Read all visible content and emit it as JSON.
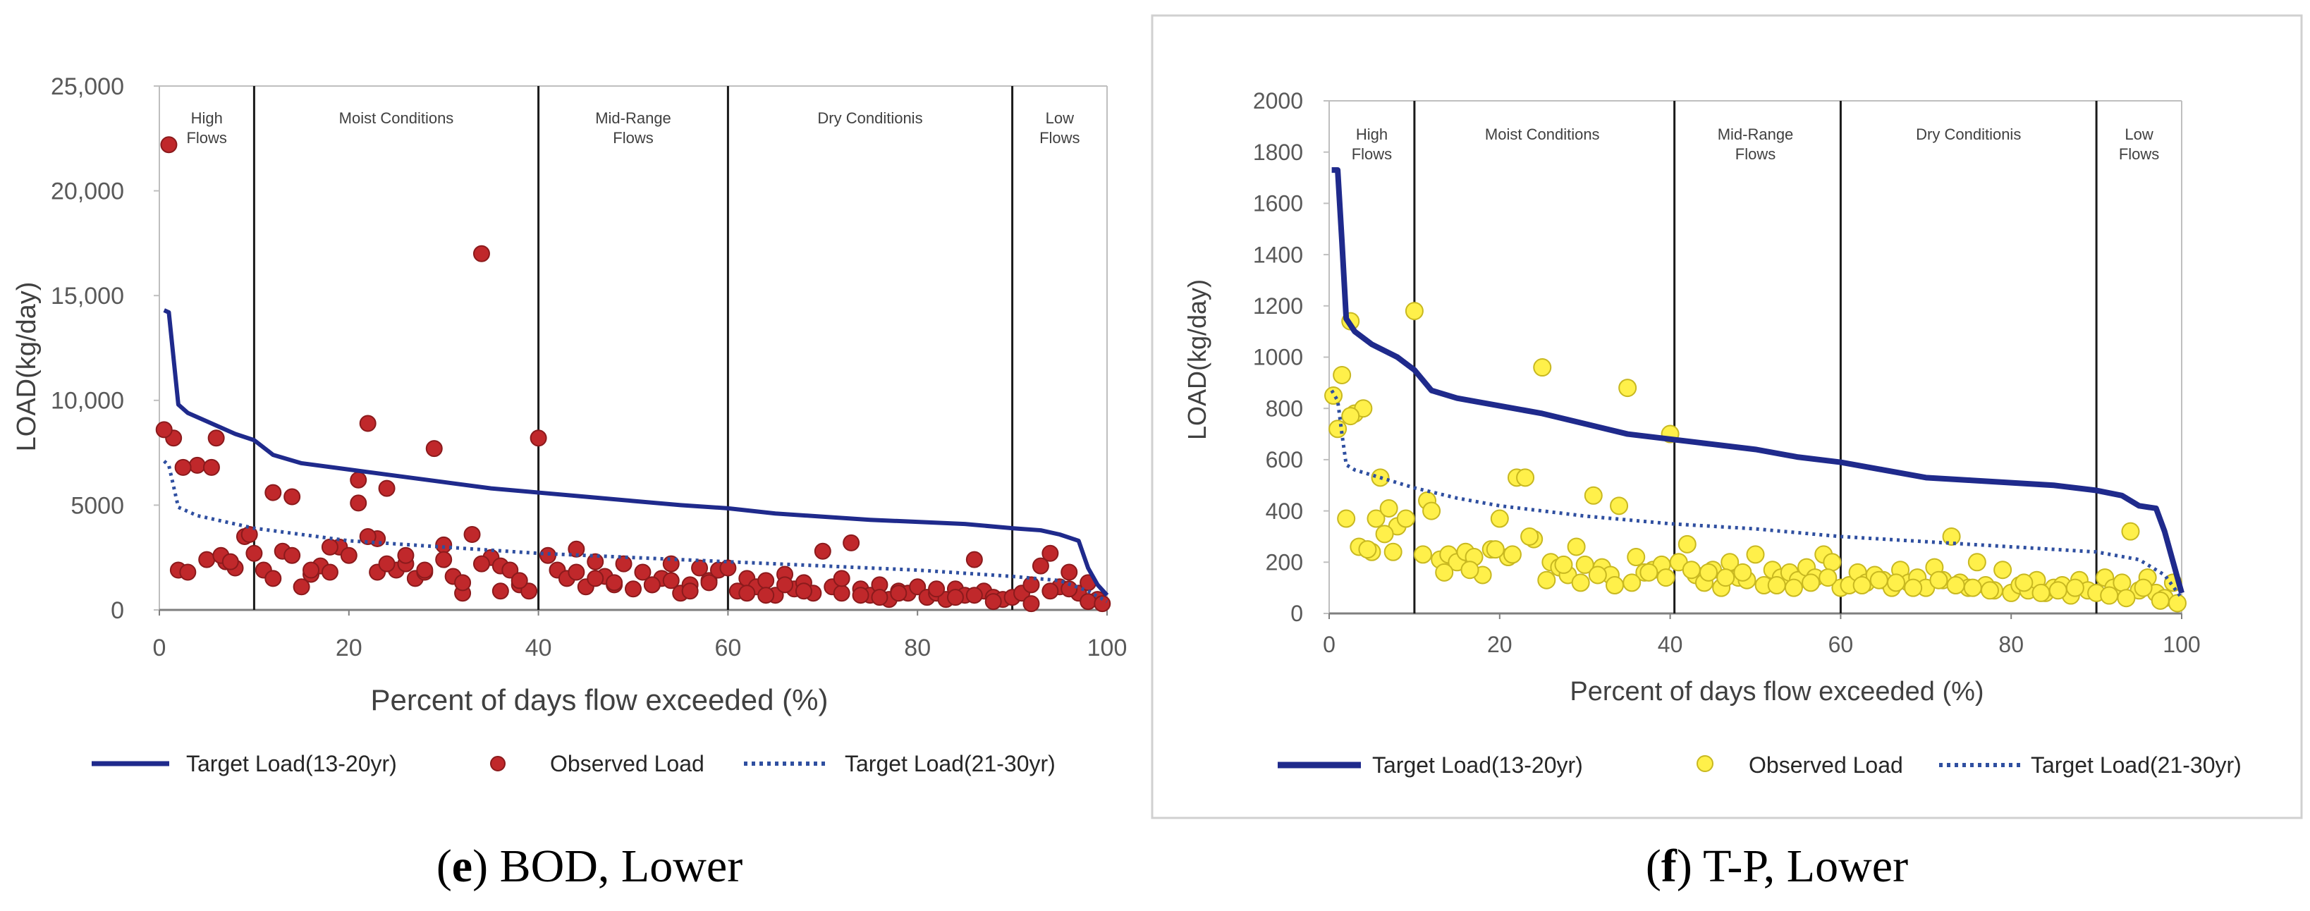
{
  "chart_data": [
    {
      "id": "e",
      "type": "scatter",
      "caption_letter": "e",
      "caption_text": ") BOD, Lower",
      "title": "",
      "xlabel": "Percent of days flow exceeded (%)",
      "ylabel": "LOAD(kg/day)",
      "xlim": [
        0,
        100
      ],
      "ylim": [
        0,
        25000
      ],
      "xticks": [
        0,
        20,
        40,
        60,
        80,
        100
      ],
      "xtick_labels": [
        "0",
        "20",
        "40",
        "60",
        "80",
        "100"
      ],
      "yticks": [
        0,
        5000,
        10000,
        15000,
        20000,
        25000
      ],
      "ytick_labels": [
        "0",
        "5000",
        "10,000",
        "15,000",
        "20,000",
        "25,000"
      ],
      "zone_dividers": [
        10,
        40,
        60,
        90
      ],
      "zones": [
        {
          "label": [
            "High",
            "Flows"
          ],
          "x": 5
        },
        {
          "label": [
            "Moist Conditions"
          ],
          "x": 25
        },
        {
          "label": [
            "Mid-Range",
            "Flows"
          ],
          "x": 50
        },
        {
          "label": [
            "Dry Conditionis"
          ],
          "x": 75
        },
        {
          "label": [
            "Low",
            "Flows"
          ],
          "x": 95
        }
      ],
      "marker_color": "#C0282B",
      "marker_stroke": "#8B1A1C",
      "legend": [
        "Target Load(13-20yr)",
        "Observed Load",
        "Target Load(21-30yr)"
      ],
      "series": [
        {
          "name": "Target Load(13-20yr)",
          "kind": "line",
          "color": "#1F2A8C",
          "x": [
            0.5,
            1,
            1.5,
            2,
            3,
            5,
            8,
            10,
            12,
            15,
            20,
            25,
            30,
            35,
            40,
            45,
            50,
            55,
            60,
            65,
            70,
            75,
            80,
            85,
            90,
            93,
            95,
            97,
            98,
            99,
            100
          ],
          "y": [
            14300,
            14200,
            12000,
            9800,
            9400,
            9000,
            8400,
            8100,
            7400,
            7000,
            6700,
            6400,
            6100,
            5800,
            5600,
            5400,
            5200,
            5000,
            4850,
            4600,
            4450,
            4300,
            4200,
            4100,
            3900,
            3800,
            3600,
            3300,
            2000,
            1200,
            700
          ]
        },
        {
          "name": "Target Load(21-30yr)",
          "kind": "dotted",
          "color": "#2F4FA0",
          "x": [
            0.5,
            1,
            2,
            4,
            6,
            10,
            15,
            20,
            30,
            40,
            50,
            60,
            70,
            80,
            90,
            95,
            98,
            100
          ],
          "y": [
            7100,
            6900,
            4900,
            4500,
            4300,
            3900,
            3600,
            3300,
            3000,
            2700,
            2500,
            2300,
            2100,
            1900,
            1600,
            1400,
            900,
            400
          ],
          "dots": "#2F4FA0"
        },
        {
          "name": "Observed Load",
          "kind": "scatter",
          "x": [
            1,
            1.5,
            2,
            0.5,
            3,
            4,
            5,
            6,
            7,
            8,
            9,
            10,
            2.5,
            5.5,
            6.5,
            7.5,
            9.5,
            11,
            12,
            13,
            14,
            15,
            16,
            17,
            18,
            19,
            20,
            21,
            22,
            23,
            24,
            25,
            26,
            27,
            28,
            29,
            30,
            31,
            32,
            33,
            34,
            35,
            36,
            37,
            38,
            39,
            40,
            41,
            42,
            43,
            44,
            45,
            46,
            47,
            48,
            49,
            50,
            51,
            52,
            53,
            54,
            55,
            56,
            57,
            58,
            59,
            60,
            61,
            62,
            63,
            64,
            65,
            66,
            67,
            68,
            69,
            70,
            71,
            72,
            73,
            74,
            75,
            76,
            77,
            78,
            79,
            80,
            81,
            82,
            83,
            84,
            85,
            86,
            87,
            88,
            89,
            90,
            91,
            92,
            93,
            94,
            95,
            96,
            97,
            98,
            99,
            12,
            14,
            16,
            18,
            21,
            22,
            23,
            24,
            26,
            28,
            30,
            32,
            34,
            36,
            38,
            44,
            46,
            48,
            52,
            54,
            56,
            58,
            62,
            64,
            66,
            68,
            72,
            74,
            76,
            78,
            82,
            84,
            86,
            88,
            92,
            94,
            96,
            98,
            99.5
          ],
          "y": [
            22200,
            8200,
            1900,
            8600,
            1800,
            6900,
            2400,
            8200,
            2300,
            2000,
            3500,
            2700,
            6800,
            6800,
            2600,
            2300,
            3600,
            1900,
            5600,
            2800,
            5400,
            1100,
            1700,
            2100,
            1800,
            3000,
            2600,
            6200,
            8900,
            3400,
            5800,
            1900,
            2200,
            1500,
            1800,
            7700,
            3100,
            1600,
            800,
            3600,
            17000,
            2500,
            2100,
            1900,
            1200,
            900,
            8200,
            2600,
            1900,
            1500,
            2900,
            1100,
            2300,
            1600,
            1200,
            2200,
            1000,
            1800,
            1200,
            1500,
            2200,
            800,
            1200,
            2000,
            1400,
            1900,
            2000,
            900,
            1500,
            1100,
            1400,
            700,
            1700,
            1000,
            1300,
            800,
            2800,
            1100,
            800,
            3200,
            1000,
            700,
            1200,
            500,
            900,
            800,
            1100,
            600,
            800,
            500,
            1000,
            700,
            2400,
            900,
            600,
            500,
            600,
            800,
            1200,
            2100,
            2700,
            1100,
            1800,
            800,
            1300,
            500,
            1500,
            2600,
            1900,
            3000,
            5100,
            3500,
            1800,
            2200,
            2600,
            1900,
            2400,
            1300,
            2200,
            900,
            1400,
            1800,
            1500,
            1300,
            1200,
            1400,
            900,
            1300,
            800,
            700,
            1200,
            900,
            1500,
            700,
            600,
            800,
            1000,
            600,
            700,
            400,
            300,
            900,
            1000,
            400,
            300
          ]
        }
      ]
    },
    {
      "id": "f",
      "type": "scatter",
      "caption_letter": "f",
      "caption_text": ") T-P, Lower",
      "title": "",
      "xlabel": "Percent of days flow exceeded  (%)",
      "ylabel": "LOAD(kg/day)",
      "xlim": [
        0,
        100
      ],
      "ylim": [
        0,
        2000
      ],
      "xticks": [
        0,
        20,
        40,
        60,
        80,
        100
      ],
      "xtick_labels": [
        "0",
        "20",
        "40",
        "60",
        "80",
        "100"
      ],
      "yticks": [
        0,
        200,
        400,
        600,
        800,
        1000,
        1200,
        1400,
        1600,
        1800,
        2000
      ],
      "ytick_labels": [
        "0",
        "200",
        "400",
        "600",
        "800",
        "1000",
        "1200",
        "1400",
        "1600",
        "1800",
        "2000"
      ],
      "zone_dividers": [
        10,
        40.5,
        60,
        90
      ],
      "zones": [
        {
          "label": [
            "High",
            "Flows"
          ],
          "x": 5
        },
        {
          "label": [
            "Moist Conditions"
          ],
          "x": 25
        },
        {
          "label": [
            "Mid-Range",
            "Flows"
          ],
          "x": 50
        },
        {
          "label": [
            "Dry Conditionis"
          ],
          "x": 75
        },
        {
          "label": [
            "Low",
            "Flows"
          ],
          "x": 95
        }
      ],
      "marker_color": "#FFF04A",
      "marker_stroke": "#C8B820",
      "legend": [
        "Target Load(13-20yr)",
        "Observed Load",
        "Target Load(21-30yr)"
      ],
      "series": [
        {
          "name": "Target Load(13-20yr)",
          "kind": "line",
          "color": "#1F2A8C",
          "x": [
            0.3,
            1,
            1.5,
            2,
            3,
            5,
            8,
            10,
            12,
            15,
            20,
            25,
            30,
            35,
            40,
            45,
            50,
            55,
            60,
            65,
            70,
            75,
            80,
            85,
            90,
            93,
            95,
            97,
            98,
            99,
            100
          ],
          "y": [
            1730,
            1730,
            1450,
            1150,
            1100,
            1050,
            1000,
            950,
            870,
            840,
            810,
            780,
            740,
            700,
            680,
            660,
            640,
            610,
            590,
            560,
            530,
            520,
            510,
            500,
            480,
            460,
            420,
            410,
            320,
            200,
            80
          ]
        },
        {
          "name": "Target Load(21-30yr)",
          "kind": "dotted",
          "color": "#2F4FA0",
          "x": [
            0.3,
            1,
            1.5,
            2,
            3,
            5,
            10,
            15,
            20,
            30,
            40,
            50,
            60,
            70,
            80,
            90,
            95,
            98,
            100
          ],
          "y": [
            870,
            830,
            700,
            580,
            560,
            540,
            490,
            450,
            420,
            380,
            350,
            330,
            300,
            280,
            260,
            240,
            210,
            150,
            60
          ],
          "dots": "#2F4FA0"
        },
        {
          "name": "Observed Load",
          "kind": "scatter",
          "x": [
            0.5,
            1,
            1.5,
            2,
            2.5,
            3,
            3.5,
            4,
            5,
            5.5,
            6,
            7,
            8,
            9,
            10,
            11,
            11.5,
            12,
            13,
            14,
            15,
            16,
            17,
            18,
            19,
            20,
            21,
            22,
            23,
            24,
            25,
            26,
            27,
            28,
            29,
            30,
            31,
            32,
            33,
            34,
            35,
            36,
            37,
            38,
            39,
            40,
            41,
            42,
            43,
            44,
            45,
            46,
            47,
            48,
            49,
            50,
            51,
            52,
            53,
            54,
            55,
            56,
            57,
            58,
            59,
            60,
            61,
            62,
            63,
            64,
            65,
            66,
            67,
            68,
            69,
            70,
            71,
            72,
            73,
            74,
            75,
            76,
            77,
            78,
            79,
            80,
            81,
            82,
            83,
            84,
            85,
            86,
            87,
            88,
            89,
            90,
            91,
            92,
            93,
            94,
            95,
            96,
            97,
            98,
            99,
            99.5,
            2.5,
            4.5,
            6.5,
            7.5,
            13.5,
            16.5,
            19.5,
            21.5,
            23.5,
            25.5,
            27.5,
            29.5,
            31.5,
            33.5,
            35.5,
            37.5,
            39.5,
            42.5,
            44.5,
            46.5,
            48.5,
            52.5,
            54.5,
            56.5,
            58.5,
            62.5,
            64.5,
            66.5,
            68.5,
            71.5,
            73.5,
            75.5,
            77.5,
            81.5,
            83.5,
            85.5,
            87.5,
            91.5,
            93.5,
            95.5,
            97.5
          ],
          "y": [
            850,
            720,
            930,
            370,
            1140,
            780,
            260,
            800,
            240,
            370,
            530,
            410,
            340,
            370,
            1180,
            230,
            440,
            400,
            210,
            230,
            200,
            240,
            220,
            150,
            250,
            370,
            220,
            530,
            530,
            290,
            960,
            200,
            180,
            150,
            260,
            190,
            460,
            180,
            150,
            420,
            880,
            220,
            160,
            170,
            190,
            700,
            200,
            270,
            150,
            120,
            170,
            100,
            200,
            140,
            130,
            230,
            110,
            170,
            140,
            160,
            130,
            180,
            140,
            230,
            200,
            100,
            110,
            160,
            120,
            150,
            130,
            100,
            170,
            120,
            140,
            100,
            180,
            130,
            300,
            120,
            100,
            200,
            110,
            90,
            170,
            80,
            110,
            90,
            130,
            80,
            100,
            110,
            70,
            130,
            90,
            80,
            140,
            100,
            120,
            320,
            90,
            140,
            80,
            60,
            120,
            40,
            770,
            250,
            310,
            240,
            160,
            170,
            250,
            230,
            300,
            130,
            190,
            120,
            150,
            110,
            120,
            160,
            140,
            170,
            160,
            140,
            160,
            110,
            100,
            120,
            140,
            110,
            130,
            120,
            100,
            130,
            110,
            100,
            90,
            120,
            80,
            90,
            100,
            70,
            60,
            100,
            50
          ]
        }
      ]
    }
  ]
}
